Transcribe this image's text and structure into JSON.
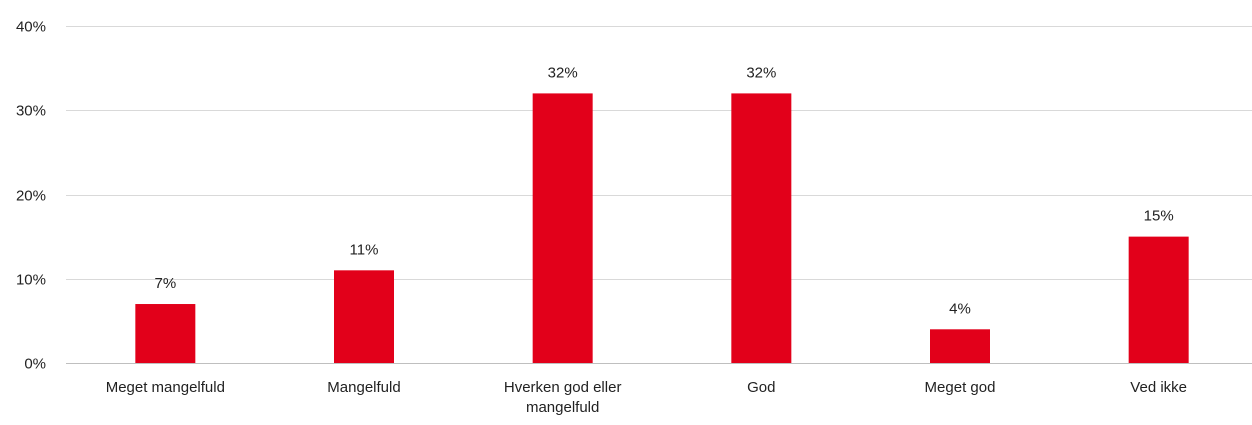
{
  "chart_data": {
    "type": "bar",
    "title": "",
    "xlabel": "",
    "ylabel": "",
    "categories": [
      "Meget mangelfuld",
      "Mangelfuld",
      "Hverken god eller mangelfuld",
      "God",
      "Meget god",
      "Ved ikke"
    ],
    "values": [
      7,
      11,
      32,
      32,
      4,
      15
    ],
    "data_labels": [
      "7%",
      "11%",
      "32%",
      "32%",
      "4%",
      "15%"
    ],
    "yticks": [
      0,
      10,
      20,
      30,
      40
    ],
    "ytick_labels": [
      "0%",
      "10%",
      "20%",
      "30%",
      "40%"
    ],
    "ylim": [
      0,
      40
    ],
    "grid": true,
    "legend": "none",
    "bar_color": "#e2001a"
  }
}
